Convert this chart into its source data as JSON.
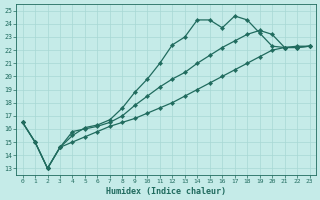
{
  "xlabel": "Humidex (Indice chaleur)",
  "ylabel": "",
  "background_color": "#c5ebe8",
  "grid_color": "#a8d8d4",
  "line_color": "#206b5e",
  "xlim_min": -0.5,
  "xlim_max": 23.5,
  "ylim_min": 12.5,
  "ylim_max": 25.5,
  "xticks": [
    0,
    1,
    2,
    3,
    4,
    5,
    6,
    7,
    8,
    9,
    10,
    11,
    12,
    13,
    14,
    15,
    16,
    17,
    18,
    19,
    20,
    21,
    22,
    23
  ],
  "yticks": [
    13,
    14,
    15,
    16,
    17,
    18,
    19,
    20,
    21,
    22,
    23,
    24,
    25
  ],
  "line1_x": [
    0,
    1,
    2,
    3,
    4,
    5,
    6,
    7,
    8,
    9,
    10,
    11,
    12,
    13,
    14,
    15,
    16,
    17,
    18,
    19,
    20,
    21,
    22,
    23
  ],
  "line1_y": [
    16.5,
    15.0,
    13.0,
    14.6,
    15.5,
    16.1,
    16.3,
    16.7,
    17.6,
    18.8,
    19.8,
    21.0,
    22.4,
    23.0,
    24.3,
    24.3,
    23.7,
    24.6,
    24.3,
    23.3,
    22.3,
    22.2,
    22.3,
    22.3
  ],
  "line2_x": [
    0,
    1,
    2,
    3,
    4,
    5,
    6,
    7,
    8,
    9,
    10,
    11,
    12,
    13,
    14,
    15,
    16,
    17,
    18,
    19,
    20,
    21,
    22,
    23
  ],
  "line2_y": [
    16.5,
    15.0,
    13.0,
    14.6,
    15.8,
    16.0,
    16.2,
    16.5,
    17.0,
    17.8,
    18.5,
    19.2,
    19.8,
    20.3,
    21.0,
    21.6,
    22.2,
    22.7,
    23.2,
    23.5,
    23.2,
    22.2,
    22.2,
    22.3
  ],
  "line3_x": [
    0,
    1,
    2,
    3,
    4,
    5,
    6,
    7,
    8,
    9,
    10,
    11,
    12,
    13,
    14,
    15,
    16,
    17,
    18,
    19,
    20,
    21,
    22,
    23
  ],
  "line3_y": [
    16.5,
    15.0,
    13.0,
    14.6,
    15.0,
    15.4,
    15.8,
    16.2,
    16.5,
    16.8,
    17.2,
    17.6,
    18.0,
    18.5,
    19.0,
    19.5,
    20.0,
    20.5,
    21.0,
    21.5,
    22.0,
    22.2,
    22.2,
    22.3
  ]
}
